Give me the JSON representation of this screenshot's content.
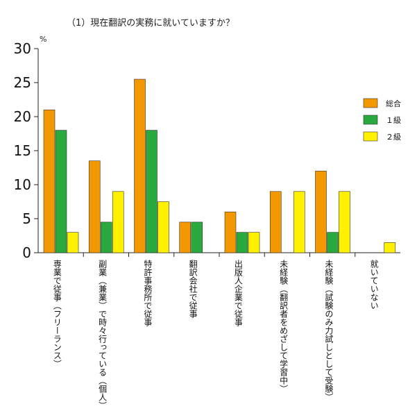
{
  "chart_data": {
    "type": "bar",
    "title": "（1）現在翻訳の実務に就いていますか？",
    "ylabel_unit": "%",
    "ylim": [
      0,
      30
    ],
    "yticks": [
      0,
      5,
      10,
      15,
      20,
      25,
      30
    ],
    "categories": [
      "専業で従事（フリーランス）",
      "副業（兼業）で時々行っている（個人）",
      "特許事務所で従事",
      "翻訳会社で従事",
      "出版人企業で従事",
      "未経験（翻訳者をめざして学習中）",
      "未経験（試験のみ力試しとして受験）",
      "就いていない"
    ],
    "series": [
      {
        "name": "総合",
        "color": "#f39800",
        "values": [
          21,
          13.5,
          25.5,
          4.5,
          6,
          9,
          12,
          0
        ]
      },
      {
        "name": "１級",
        "color": "#2aaa3e",
        "values": [
          18,
          4.5,
          18,
          4.5,
          3,
          0,
          3,
          0
        ]
      },
      {
        "name": "２級",
        "color": "#fff100",
        "values": [
          3,
          9,
          7.5,
          0,
          3,
          9,
          9,
          1.5
        ]
      }
    ],
    "legend_position": "right",
    "grid": false
  }
}
